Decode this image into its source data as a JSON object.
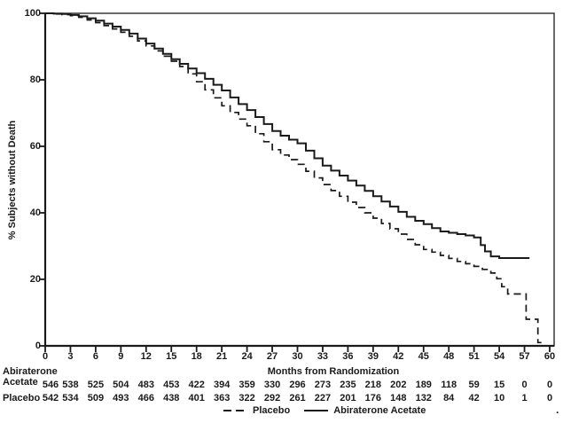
{
  "figure": {
    "background_color": "#ffffff",
    "ink_color": "#1a1a1a"
  },
  "chart_data": {
    "type": "line",
    "subtype": "kaplan-meier-step",
    "title": "",
    "xlabel": "Months from Randomization",
    "ylabel": "% Subjects without Death",
    "xlim": [
      0,
      60
    ],
    "ylim": [
      0,
      100
    ],
    "x_ticks": [
      0,
      3,
      6,
      9,
      12,
      15,
      18,
      21,
      24,
      27,
      30,
      33,
      36,
      39,
      42,
      45,
      48,
      51,
      54,
      57,
      60
    ],
    "y_ticks": [
      0,
      20,
      40,
      60,
      80,
      100
    ],
    "grid": false,
    "legend_position": "bottom-center",
    "series": [
      {
        "name": "Placebo",
        "line_style": "dashed",
        "color": "#1a1a1a",
        "points": [
          [
            0,
            100
          ],
          [
            1,
            99.8
          ],
          [
            2,
            99.6
          ],
          [
            3,
            99.3
          ],
          [
            4,
            98.8
          ],
          [
            5,
            98.0
          ],
          [
            6,
            97.2
          ],
          [
            7,
            96.3
          ],
          [
            8,
            95.3
          ],
          [
            9,
            94.3
          ],
          [
            10,
            93.1
          ],
          [
            11,
            91.7
          ],
          [
            12,
            90.2
          ],
          [
            13,
            88.7
          ],
          [
            14,
            87.1
          ],
          [
            15,
            85.6
          ],
          [
            16,
            84.0
          ],
          [
            17,
            81.8
          ],
          [
            18,
            79.4
          ],
          [
            19,
            77.0
          ],
          [
            20,
            74.6
          ],
          [
            21,
            72.2
          ],
          [
            22,
            70.2
          ],
          [
            23,
            68.2
          ],
          [
            24,
            66.2
          ],
          [
            25,
            63.8
          ],
          [
            26,
            61.4
          ],
          [
            27,
            59.0
          ],
          [
            28,
            57.4
          ],
          [
            29,
            56.0
          ],
          [
            30,
            54.6
          ],
          [
            31,
            52.5
          ],
          [
            32,
            50.5
          ],
          [
            33,
            48.5
          ],
          [
            34,
            46.7
          ],
          [
            35,
            45.0
          ],
          [
            36,
            43.2
          ],
          [
            37,
            41.6
          ],
          [
            38,
            40.0
          ],
          [
            39,
            38.4
          ],
          [
            40,
            36.8
          ],
          [
            41,
            35.2
          ],
          [
            42,
            33.6
          ],
          [
            43,
            32.0
          ],
          [
            44,
            30.4
          ],
          [
            45,
            29.0
          ],
          [
            46,
            28.2
          ],
          [
            47,
            27.2
          ],
          [
            48,
            26.3
          ],
          [
            49,
            25.4
          ],
          [
            50,
            24.7
          ],
          [
            51,
            23.9
          ],
          [
            52,
            23.0
          ],
          [
            53,
            21.9
          ],
          [
            53.7,
            20.2
          ],
          [
            54.3,
            17.8
          ],
          [
            55.0,
            15.6
          ],
          [
            57.2,
            8.0
          ],
          [
            58.6,
            1.0
          ],
          [
            59.2,
            1.0
          ]
        ]
      },
      {
        "name": "Abiraterone Acetate",
        "line_style": "solid",
        "color": "#1a1a1a",
        "points": [
          [
            0,
            100
          ],
          [
            1,
            99.9
          ],
          [
            2,
            99.8
          ],
          [
            3,
            99.5
          ],
          [
            4,
            99.1
          ],
          [
            5,
            98.5
          ],
          [
            6,
            97.8
          ],
          [
            7,
            96.9
          ],
          [
            8,
            96.0
          ],
          [
            9,
            95.0
          ],
          [
            10,
            93.9
          ],
          [
            11,
            92.4
          ],
          [
            12,
            90.9
          ],
          [
            13,
            89.4
          ],
          [
            14,
            87.8
          ],
          [
            15,
            86.2
          ],
          [
            16,
            84.8
          ],
          [
            17,
            83.4
          ],
          [
            18,
            82.0
          ],
          [
            19,
            80.3
          ],
          [
            20,
            78.5
          ],
          [
            21,
            76.8
          ],
          [
            22,
            74.7
          ],
          [
            23,
            72.7
          ],
          [
            24,
            70.9
          ],
          [
            25,
            68.8
          ],
          [
            26,
            66.7
          ],
          [
            27,
            64.6
          ],
          [
            28,
            63.2
          ],
          [
            29,
            62.0
          ],
          [
            30,
            60.9
          ],
          [
            31,
            58.7
          ],
          [
            32,
            56.4
          ],
          [
            33,
            54.2
          ],
          [
            34,
            52.7
          ],
          [
            35,
            51.2
          ],
          [
            36,
            49.7
          ],
          [
            37,
            48.2
          ],
          [
            38,
            46.6
          ],
          [
            39,
            45.0
          ],
          [
            40,
            43.4
          ],
          [
            41,
            41.9
          ],
          [
            42,
            40.3
          ],
          [
            43,
            38.8
          ],
          [
            44,
            37.6
          ],
          [
            45,
            36.6
          ],
          [
            46,
            35.4
          ],
          [
            47,
            34.4
          ],
          [
            48,
            34.0
          ],
          [
            49,
            33.6
          ],
          [
            50,
            33.2
          ],
          [
            51,
            32.6
          ],
          [
            51.8,
            30.3
          ],
          [
            52.3,
            28.4
          ],
          [
            53.0,
            26.9
          ],
          [
            54.0,
            26.4
          ],
          [
            57.6,
            26.4
          ]
        ]
      }
    ]
  },
  "risk_table": {
    "rows": [
      {
        "label_lines": [
          "Abiraterone",
          "Acetate"
        ],
        "counts": [
          546,
          538,
          525,
          504,
          483,
          453,
          422,
          394,
          359,
          330,
          296,
          273,
          235,
          218,
          202,
          189,
          118,
          59,
          15,
          0,
          0
        ]
      },
      {
        "label_lines": [
          "Placebo"
        ],
        "counts": [
          542,
          534,
          509,
          493,
          466,
          438,
          401,
          363,
          322,
          292,
          261,
          227,
          201,
          176,
          148,
          132,
          84,
          42,
          10,
          1,
          0
        ]
      }
    ]
  },
  "legend": {
    "items": [
      {
        "label": "Placebo",
        "style": "dashed"
      },
      {
        "label": "Abiraterone Acetate",
        "style": "solid"
      }
    ]
  },
  "corner_mark": "."
}
